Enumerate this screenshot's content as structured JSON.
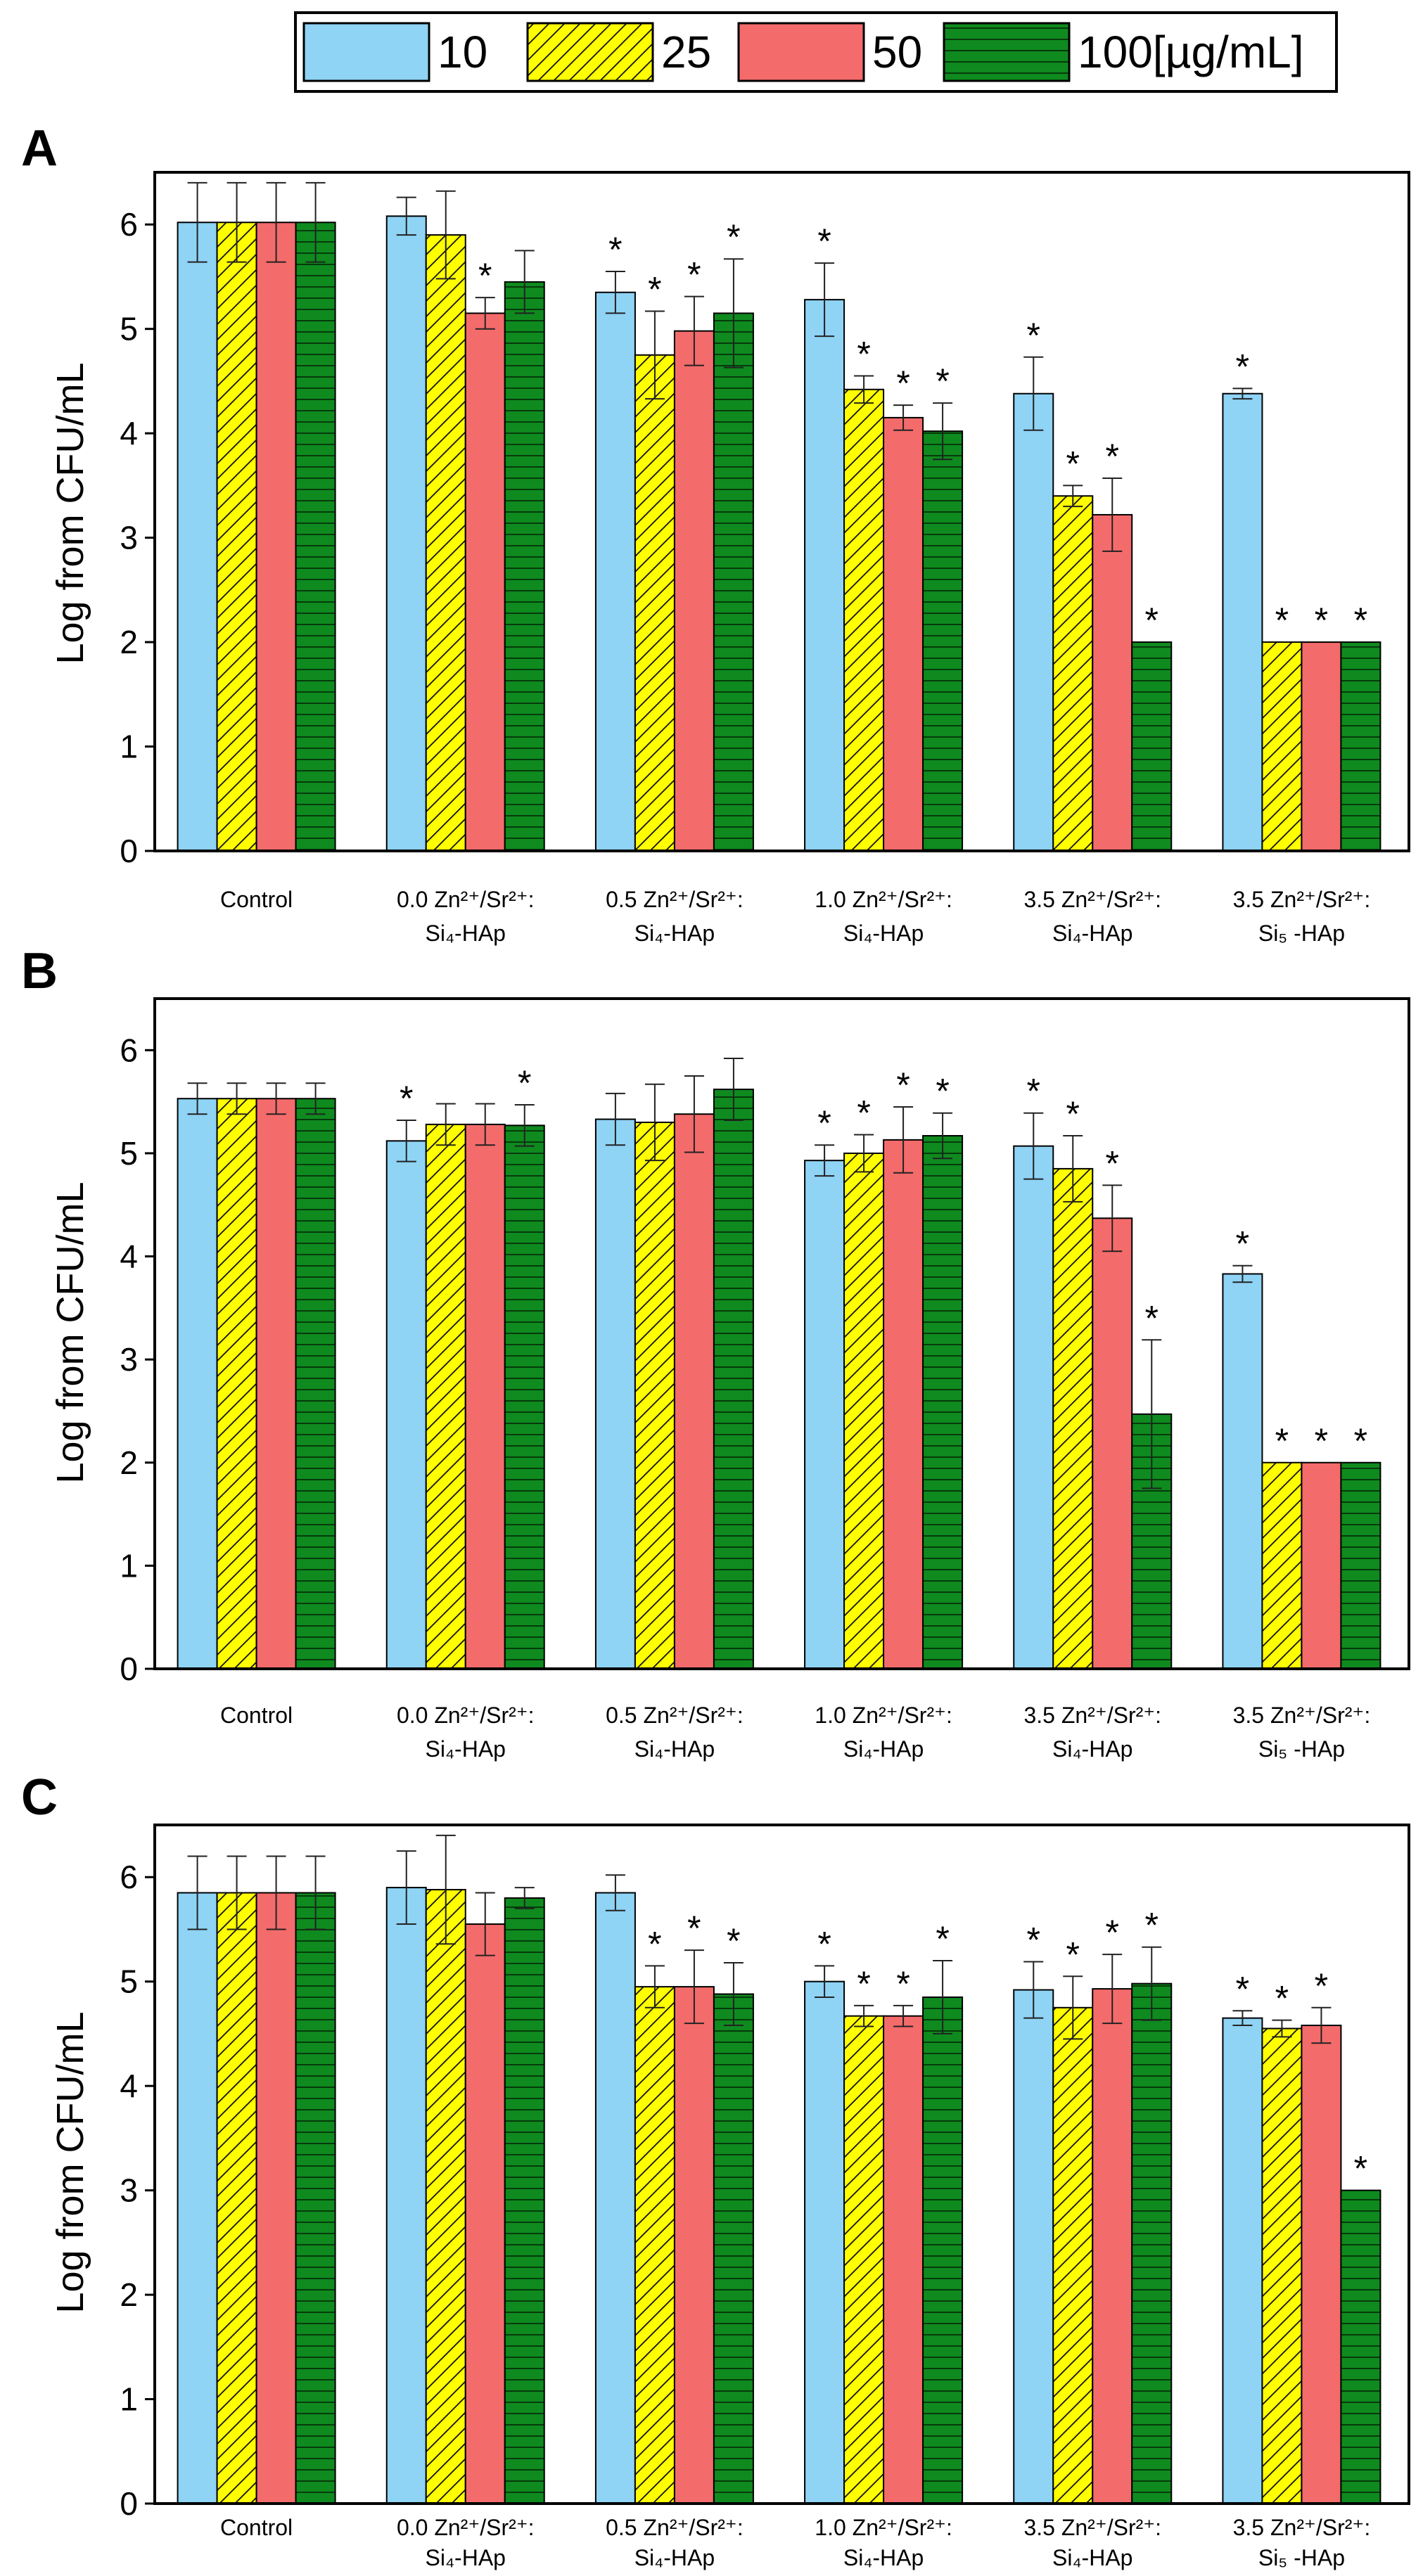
{
  "legend": {
    "items": [
      {
        "label": "10",
        "color": "#8fd3f5",
        "pattern": "none"
      },
      {
        "label": "25",
        "color": "#ffff00",
        "pattern": "diagonal"
      },
      {
        "label": "50",
        "color": "#f46b6b",
        "pattern": "none"
      },
      {
        "label": "100[µg/mL]",
        "color": "#0f8a1f",
        "pattern": "horizontal"
      }
    ]
  },
  "chart_data": [
    {
      "type": "bar",
      "panel": "A",
      "ylabel": "Log from CFU/mL",
      "ylim": [
        0,
        6.5
      ],
      "yticks": [
        0,
        1,
        2,
        3,
        4,
        5,
        6
      ],
      "categories": [
        {
          "lines": [
            "Control"
          ]
        },
        {
          "lines": [
            "0.0  Zn²⁺/Sr²⁺:",
            "Si₄-HAp"
          ]
        },
        {
          "lines": [
            "0.5  Zn²⁺/Sr²⁺:",
            "Si₄-HAp"
          ]
        },
        {
          "lines": [
            "1.0  Zn²⁺/Sr²⁺:",
            "Si₄-HAp"
          ]
        },
        {
          "lines": [
            "3.5  Zn²⁺/Sr²⁺:",
            "Si₄-HAp"
          ]
        },
        {
          "lines": [
            "3.5  Zn²⁺/Sr²⁺:",
            "Si₅ -HAp"
          ]
        }
      ],
      "series": [
        {
          "name": "10",
          "values": [
            6.02,
            6.08,
            5.35,
            5.28,
            4.38,
            4.38
          ],
          "errors": [
            0.38,
            0.18,
            0.2,
            0.35,
            0.35,
            0.05
          ],
          "stars": [
            false,
            false,
            true,
            true,
            true,
            true
          ]
        },
        {
          "name": "25",
          "values": [
            6.02,
            5.9,
            4.75,
            4.42,
            3.4,
            2.0
          ],
          "errors": [
            0.38,
            0.42,
            0.42,
            0.13,
            0.1,
            0.0
          ],
          "stars": [
            false,
            false,
            true,
            true,
            true,
            true
          ]
        },
        {
          "name": "50",
          "values": [
            6.02,
            5.15,
            4.98,
            4.15,
            3.22,
            2.0
          ],
          "errors": [
            0.38,
            0.15,
            0.33,
            0.12,
            0.35,
            0.0
          ],
          "stars": [
            false,
            true,
            true,
            true,
            true,
            true
          ]
        },
        {
          "name": "100[µg/mL]",
          "values": [
            6.02,
            5.45,
            5.15,
            4.02,
            2.0,
            2.0
          ],
          "errors": [
            0.38,
            0.3,
            0.52,
            0.27,
            0.0,
            0.0
          ],
          "stars": [
            false,
            false,
            true,
            true,
            true,
            true
          ]
        }
      ],
      "star_symbol": "*"
    },
    {
      "type": "bar",
      "panel": "B",
      "ylabel": "Log from CFU/mL",
      "ylim": [
        0,
        6.5
      ],
      "yticks": [
        0,
        1,
        2,
        3,
        4,
        5,
        6
      ],
      "categories": [
        {
          "lines": [
            "Control"
          ]
        },
        {
          "lines": [
            "0.0  Zn²⁺/Sr²⁺:",
            "Si₄-HAp"
          ]
        },
        {
          "lines": [
            "0.5  Zn²⁺/Sr²⁺:",
            "Si₄-HAp"
          ]
        },
        {
          "lines": [
            "1.0  Zn²⁺/Sr²⁺:",
            "Si₄-HAp"
          ]
        },
        {
          "lines": [
            "3.5  Zn²⁺/Sr²⁺:",
            "Si₄-HAp"
          ]
        },
        {
          "lines": [
            "3.5  Zn²⁺/Sr²⁺:",
            "Si₅ -HAp"
          ]
        }
      ],
      "series": [
        {
          "name": "10",
          "values": [
            5.53,
            5.12,
            5.33,
            4.93,
            5.07,
            3.83
          ],
          "errors": [
            0.15,
            0.2,
            0.25,
            0.15,
            0.32,
            0.08
          ],
          "stars": [
            false,
            true,
            false,
            true,
            true,
            true
          ]
        },
        {
          "name": "25",
          "values": [
            5.53,
            5.28,
            5.3,
            5.0,
            4.85,
            2.0
          ],
          "errors": [
            0.15,
            0.2,
            0.37,
            0.18,
            0.32,
            0.0
          ],
          "stars": [
            false,
            false,
            false,
            true,
            true,
            true
          ]
        },
        {
          "name": "50",
          "values": [
            5.53,
            5.28,
            5.38,
            5.13,
            4.37,
            2.0
          ],
          "errors": [
            0.15,
            0.2,
            0.37,
            0.32,
            0.32,
            0.0
          ],
          "stars": [
            false,
            false,
            false,
            true,
            true,
            true
          ]
        },
        {
          "name": "100[µg/mL]",
          "values": [
            5.53,
            5.27,
            5.62,
            5.17,
            2.47,
            2.0
          ],
          "errors": [
            0.15,
            0.2,
            0.3,
            0.22,
            0.72,
            0.0
          ],
          "stars": [
            false,
            true,
            false,
            true,
            true,
            true
          ]
        }
      ],
      "star_symbol": "*"
    },
    {
      "type": "bar",
      "panel": "C",
      "ylabel": "Log from CFU/mL",
      "ylim": [
        0,
        6.5
      ],
      "yticks": [
        0,
        1,
        2,
        3,
        4,
        5,
        6
      ],
      "categories": [
        {
          "lines": [
            "Control"
          ]
        },
        {
          "lines": [
            "0.0  Zn²⁺/Sr²⁺:",
            "Si₄-HAp"
          ]
        },
        {
          "lines": [
            "0.5  Zn²⁺/Sr²⁺:",
            "Si₄-HAp"
          ]
        },
        {
          "lines": [
            "1.0  Zn²⁺/Sr²⁺:",
            "Si₄-HAp"
          ]
        },
        {
          "lines": [
            "3.5  Zn²⁺/Sr²⁺:",
            "Si₄-HAp"
          ]
        },
        {
          "lines": [
            "3.5  Zn²⁺/Sr²⁺:",
            "Si₅ -HAp"
          ]
        }
      ],
      "series": [
        {
          "name": "10",
          "values": [
            5.85,
            5.9,
            5.85,
            5.0,
            4.92,
            4.65
          ],
          "errors": [
            0.35,
            0.35,
            0.17,
            0.15,
            0.27,
            0.07
          ],
          "stars": [
            false,
            false,
            false,
            true,
            true,
            true
          ]
        },
        {
          "name": "25",
          "values": [
            5.85,
            5.88,
            4.95,
            4.67,
            4.75,
            4.55
          ],
          "errors": [
            0.35,
            0.52,
            0.2,
            0.1,
            0.3,
            0.08
          ],
          "stars": [
            false,
            false,
            true,
            true,
            true,
            true
          ]
        },
        {
          "name": "50",
          "values": [
            5.85,
            5.55,
            4.95,
            4.67,
            4.93,
            4.58
          ],
          "errors": [
            0.35,
            0.3,
            0.35,
            0.1,
            0.33,
            0.17
          ],
          "stars": [
            false,
            false,
            true,
            true,
            true,
            true
          ]
        },
        {
          "name": "100[µg/mL]",
          "values": [
            5.85,
            5.8,
            4.88,
            4.85,
            4.98,
            3.0
          ],
          "errors": [
            0.35,
            0.1,
            0.3,
            0.35,
            0.35,
            0.0
          ],
          "stars": [
            false,
            false,
            true,
            true,
            true,
            true
          ]
        }
      ],
      "star_symbol": "*"
    }
  ]
}
